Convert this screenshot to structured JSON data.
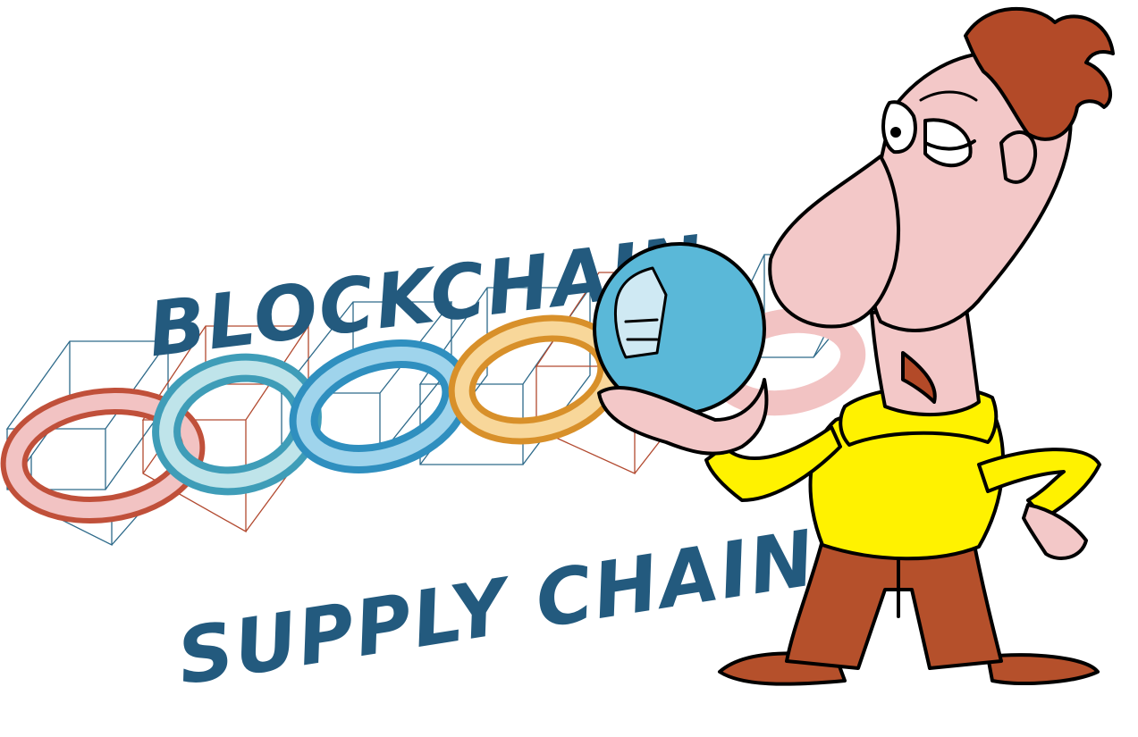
{
  "artwork": {
    "headline_top": "BLOCKCHAIN",
    "headline_bottom": "SUPPLY CHAIN",
    "colors": {
      "text": "#235a7e",
      "ring_red": "#c0503a",
      "ring_pink": "#f2c3c3",
      "ring_teal": "#5fb6c8",
      "ring_blue": "#4fa6cf",
      "ring_gold": "#e8a93a",
      "crystal_ball": "#5ab8d8",
      "sweater": "#fff200",
      "trousers": "#b5502b",
      "hair": "#b34a28",
      "skin": "#f3c8c8",
      "outline": "#000000"
    }
  }
}
